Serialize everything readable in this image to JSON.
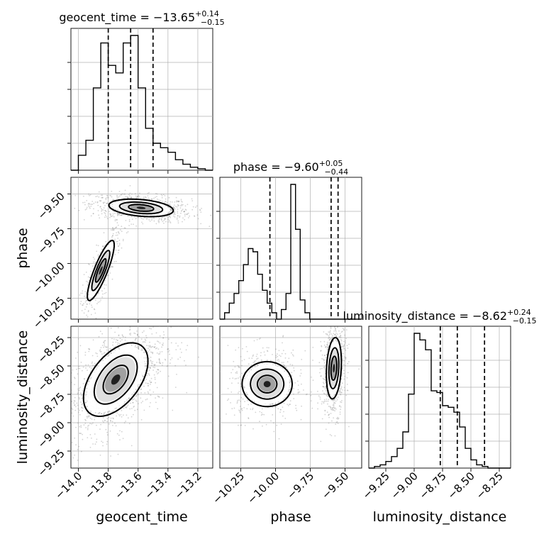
{
  "chart_data": {
    "type": "corner",
    "parameters": [
      {
        "name": "geocent_time",
        "title_prefix": "geocent_time = ",
        "median": "−13.65",
        "plus": "+0.14",
        "minus": "−0.15",
        "range": [
          -14.05,
          -13.1
        ],
        "ticks": [
          -14.0,
          -13.8,
          -13.6,
          -13.4,
          -13.2
        ],
        "tick_labels": [
          "−14.0",
          "−13.8",
          "−13.6",
          "−13.4",
          "−13.2"
        ],
        "quantiles": [
          -13.8,
          -13.65,
          -13.5
        ],
        "hist_edges_start": -14.05,
        "hist_bin_width": 0.05,
        "hist_counts": [
          0,
          0.1,
          0.2,
          0.55,
          0.85,
          0.7,
          0.65,
          0.85,
          0.9,
          0.55,
          0.28,
          0.18,
          0.15,
          0.12,
          0.07,
          0.04,
          0.02,
          0.01,
          0,
          0
        ]
      },
      {
        "name": "phase",
        "title_prefix": "phase = ",
        "median": "−9.60",
        "plus": "+0.05",
        "minus": "−0.44",
        "range": [
          -10.4,
          -9.38
        ],
        "ticks": [
          -10.25,
          -10.0,
          -9.75,
          -9.5
        ],
        "tick_labels": [
          "−10.25",
          "−10.00",
          "−9.75",
          "−9.50"
        ],
        "quantiles": [
          -10.04,
          -9.6,
          -9.55
        ],
        "hist_edges_start": -10.4,
        "hist_bin_width": 0.034,
        "hist_counts": [
          0,
          0.02,
          0.05,
          0.08,
          0.12,
          0.17,
          0.22,
          0.21,
          0.14,
          0.09,
          0.05,
          0.02,
          0.0,
          0.03,
          0.08,
          0.42,
          0.28,
          0.06,
          0.02,
          0,
          0,
          0,
          0,
          0,
          0,
          0,
          0,
          0,
          0,
          0
        ]
      },
      {
        "name": "luminosity_distance",
        "title_prefix": "luminosity_distance = ",
        "median": "−8.62",
        "plus": "+0.24",
        "minus": "−0.15",
        "range": [
          -9.4,
          -8.15
        ],
        "ticks": [
          -9.25,
          -9.0,
          -8.75,
          -8.5,
          -8.25
        ],
        "tick_labels": [
          "−9.25",
          "−9.00",
          "−8.75",
          "−8.50",
          "−8.25"
        ],
        "quantiles": [
          -8.77,
          -8.62,
          -8.38
        ],
        "hist_edges_start": -9.4,
        "hist_bin_width": 0.05,
        "hist_counts": [
          0,
          0.01,
          0.02,
          0.04,
          0.07,
          0.12,
          0.22,
          0.45,
          0.82,
          0.78,
          0.72,
          0.47,
          0.46,
          0.38,
          0.37,
          0.34,
          0.25,
          0.12,
          0.05,
          0.02,
          0.01,
          0,
          0,
          0,
          0
        ]
      }
    ],
    "xlabels": [
      "geocent_time",
      "phase",
      "luminosity_distance"
    ],
    "ylabels": [
      "phase",
      "luminosity_distance"
    ],
    "clusters": {
      "time_phase": [
        {
          "cx": -13.58,
          "cy": -9.6,
          "sx": 0.12,
          "sy": 0.035,
          "rho": -0.3,
          "n": 900
        },
        {
          "cx": -13.85,
          "cy": -10.05,
          "sx": 0.05,
          "sy": 0.12,
          "rho": 0.85,
          "n": 450
        }
      ],
      "time_dist": [
        {
          "cx": -13.75,
          "cy": -8.62,
          "sx": 0.12,
          "sy": 0.18,
          "rho": 0.5,
          "n": 1300
        }
      ],
      "phase_dist": [
        {
          "cx": -10.06,
          "cy": -8.66,
          "sx": 0.1,
          "sy": 0.11,
          "rho": 0.0,
          "n": 550
        },
        {
          "cx": -9.58,
          "cy": -8.52,
          "sx": 0.03,
          "sy": 0.15,
          "rho": 0.2,
          "n": 750
        }
      ]
    },
    "grid": true
  }
}
